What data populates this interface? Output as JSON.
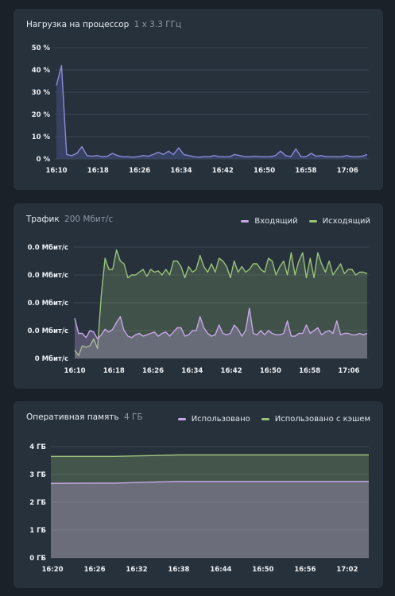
{
  "colors": {
    "bg": "#1a2129",
    "card": "#27313c",
    "grid": "#3a4552",
    "cpu_line": "#8b8bd8",
    "cpu_fill": "#3b4569",
    "incoming": "#c8a8e6",
    "outgoing": "#9bc27a",
    "used": "#c8a8e6",
    "cached": "#9bc27a"
  },
  "cpu": {
    "title": "Нагрузка на процессор",
    "subtitle": "1 x 3.3 ГГц"
  },
  "network": {
    "title": "Трафик",
    "subtitle": "200 Мбит/с",
    "legend": {
      "incoming": "Входящий",
      "outgoing": "Исходящий"
    }
  },
  "memory": {
    "title": "Оперативная память",
    "subtitle": "4 ГБ",
    "legend": {
      "used": "Использовано",
      "cached": "Использовано с кэшем"
    }
  },
  "chart_data": [
    {
      "type": "area",
      "title": "Нагрузка на процессор",
      "x_ticks": [
        "16:10",
        "16:18",
        "16:26",
        "16:34",
        "16:42",
        "16:50",
        "16:58",
        "17:06"
      ],
      "y_ticks": [
        "0 %",
        "10 %",
        "20 %",
        "30 %",
        "40 %",
        "50 %"
      ],
      "ylim": [
        0,
        50
      ],
      "series": [
        {
          "values": [
            33,
            42,
            2,
            1.5,
            2.5,
            5.5,
            1.5,
            1.2,
            1.5,
            1,
            1.2,
            2.5,
            1.5,
            1,
            1,
            0.8,
            1,
            1.5,
            1.2,
            2,
            3,
            2,
            3.5,
            2,
            5,
            2,
            1.5,
            1,
            0.8,
            1,
            1,
            1.5,
            1,
            1,
            1,
            2,
            1.5,
            1,
            1,
            1.2,
            1,
            1,
            1,
            1.5,
            3.5,
            1.5,
            1,
            4.5,
            1,
            1,
            2.5,
            1.2,
            1.5,
            1,
            1,
            1,
            1,
            1.5,
            1,
            1,
            1.2,
            2
          ]
        }
      ]
    },
    {
      "type": "area",
      "title": "Трафик",
      "x_ticks": [
        "16:10",
        "16:18",
        "16:26",
        "16:34",
        "16:42",
        "16:50",
        "16:58",
        "17:06"
      ],
      "y_ticks": [
        "0 Мбит/с",
        "0.0 Мбит/с",
        "0.0 Мбит/с",
        "0.0 Мбит/с",
        "0.0 Мбит/с"
      ],
      "ylim": [
        0,
        4
      ],
      "series": [
        {
          "name": "Исходящий",
          "values": [
            0.3,
            0.1,
            0.45,
            0.4,
            0.45,
            0.7,
            0.35,
            2.3,
            3.6,
            3.2,
            3.2,
            3.9,
            3.5,
            3.4,
            2.9,
            3.0,
            3.0,
            3.1,
            3.2,
            2.95,
            3.2,
            3.1,
            3.15,
            3.0,
            3.2,
            3.0,
            3.5,
            3.5,
            3.3,
            2.9,
            3.3,
            3.1,
            3.2,
            3.7,
            3.3,
            3.1,
            3.4,
            3.1,
            3.6,
            3.5,
            3.3,
            2.9,
            3.5,
            3.1,
            3.3,
            3.1,
            3.2,
            3.4,
            3.4,
            3.2,
            3.1,
            3.6,
            3.5,
            3.0,
            3.3,
            3.5,
            3.0,
            3.8,
            3.0,
            3.5,
            3.8,
            2.9,
            3.6,
            2.9,
            3.8,
            3.4,
            3.1,
            3.5,
            3.0,
            3.2,
            3.4,
            3.05,
            3.2,
            3.2,
            3.0,
            3.1,
            3.1,
            3.05
          ]
        },
        {
          "name": "Входящий",
          "values": [
            1.45,
            0.9,
            0.9,
            0.75,
            1.0,
            0.95,
            0.7,
            0.85,
            1.05,
            0.95,
            1.05,
            1.3,
            1.5,
            1.0,
            0.8,
            0.75,
            0.85,
            0.9,
            0.8,
            0.85,
            0.9,
            0.95,
            0.8,
            0.9,
            0.95,
            0.8,
            0.95,
            1.1,
            1.1,
            0.8,
            0.85,
            1.0,
            1.0,
            1.5,
            1.1,
            0.9,
            0.8,
            0.85,
            1.2,
            0.9,
            0.85,
            0.9,
            1.2,
            1.05,
            0.8,
            1.0,
            1.8,
            0.9,
            0.85,
            1.0,
            0.85,
            1.0,
            0.9,
            0.85,
            0.85,
            0.9,
            1.35,
            0.8,
            0.8,
            0.9,
            0.9,
            1.2,
            0.9,
            1.0,
            1.1,
            0.85,
            0.95,
            1.0,
            0.9,
            1.35,
            0.85,
            0.9,
            0.9,
            0.85,
            0.85,
            0.9,
            0.85,
            0.9
          ]
        }
      ]
    },
    {
      "type": "area",
      "title": "Оперативная память",
      "x_ticks": [
        "16:20",
        "16:26",
        "16:32",
        "16:38",
        "16:44",
        "16:50",
        "16:56",
        "17:02"
      ],
      "y_ticks": [
        "0 ГБ",
        "1 ГБ",
        "2 ГБ",
        "3 ГБ",
        "4 ГБ"
      ],
      "ylim": [
        0,
        4
      ],
      "series": [
        {
          "name": "Использовано с кэшем",
          "x": [
            0,
            0.2,
            0.4,
            1
          ],
          "values": [
            3.65,
            3.65,
            3.7,
            3.7
          ]
        },
        {
          "name": "Использовано",
          "x": [
            0,
            0.2,
            0.4,
            1
          ],
          "values": [
            2.68,
            2.69,
            2.75,
            2.75
          ]
        }
      ]
    }
  ]
}
